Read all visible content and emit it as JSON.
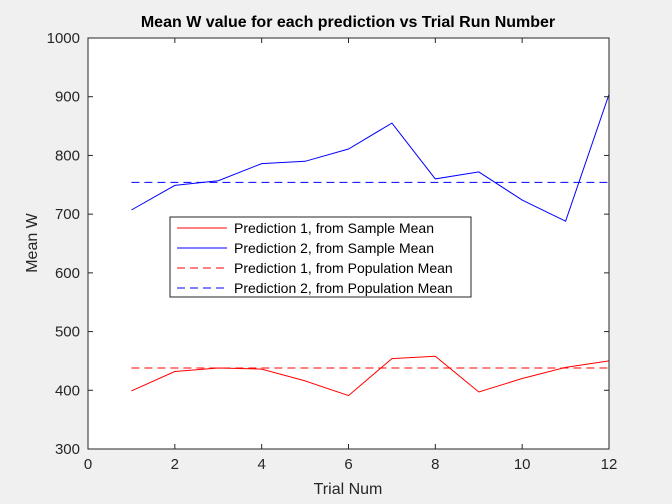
{
  "chart_data": {
    "type": "line",
    "title": "Mean W value for each prediction vs Trial Run Number",
    "xlabel": "Trial Num",
    "ylabel": "Mean W",
    "xlim": [
      0,
      12
    ],
    "ylim": [
      300,
      1000
    ],
    "xticks": [
      0,
      2,
      4,
      6,
      8,
      10,
      12
    ],
    "yticks": [
      300,
      400,
      500,
      600,
      700,
      800,
      900,
      1000
    ],
    "grid": false,
    "legend_placement": "center-left",
    "series": [
      {
        "name": "Prediction 1, from Sample Mean",
        "color": "#ff0000",
        "style": "solid",
        "x": [
          1,
          2,
          3,
          4,
          5,
          6,
          7,
          8,
          9,
          10,
          11,
          12
        ],
        "values": [
          399,
          432,
          438,
          436,
          416,
          391,
          454,
          458,
          397,
          420,
          439,
          450
        ]
      },
      {
        "name": "Prediction 2, from Sample Mean",
        "color": "#0000ff",
        "style": "solid",
        "x": [
          1,
          2,
          3,
          4,
          5,
          6,
          7,
          8,
          9,
          10,
          11,
          12
        ],
        "values": [
          707,
          749,
          757,
          786,
          790,
          811,
          855,
          760,
          772,
          724,
          688,
          904
        ]
      },
      {
        "name": "Prediction 1, from Population Mean",
        "color": "#ff0000",
        "style": "dashed",
        "x": [
          1,
          12
        ],
        "values": [
          438,
          438
        ]
      },
      {
        "name": "Prediction 2, from Population Mean",
        "color": "#0000ff",
        "style": "dashed",
        "x": [
          1,
          12
        ],
        "values": [
          754,
          754
        ]
      }
    ]
  }
}
